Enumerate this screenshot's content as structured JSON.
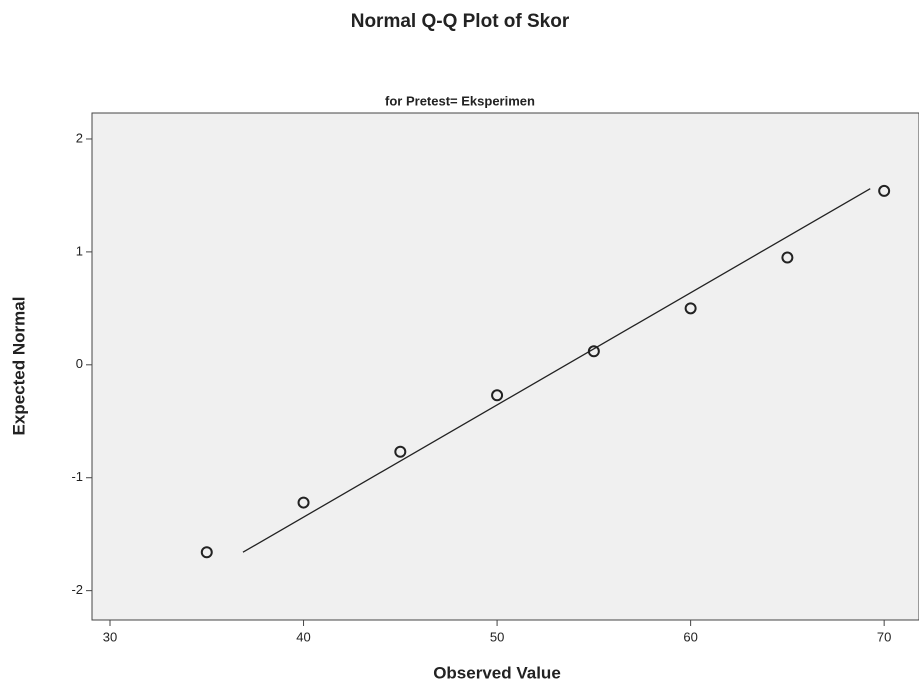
{
  "chart_data": {
    "type": "scatter",
    "title": "Normal Q-Q Plot of Skor",
    "subtitle": "for Pretest= Eksperimen",
    "x_label": "Observed Value",
    "y_label": "Expected Normal",
    "x": [
      35,
      40,
      45,
      50,
      55,
      60,
      65,
      70
    ],
    "values": [
      -1.66,
      -1.22,
      -0.77,
      -0.27,
      0.12,
      0.5,
      0.95,
      1.54
    ],
    "color": "#222222",
    "reference_line": {
      "x": [
        36.87,
        69.28
      ],
      "y": [
        -1.66,
        1.56
      ]
    },
    "xlim": [
      29.07,
      71.8
    ],
    "ylim": [
      -2.26,
      2.23
    ],
    "xticks": [
      30,
      40,
      50,
      60,
      70
    ],
    "yticks": [
      -2,
      -1,
      0,
      1,
      2
    ],
    "grid": false
  }
}
